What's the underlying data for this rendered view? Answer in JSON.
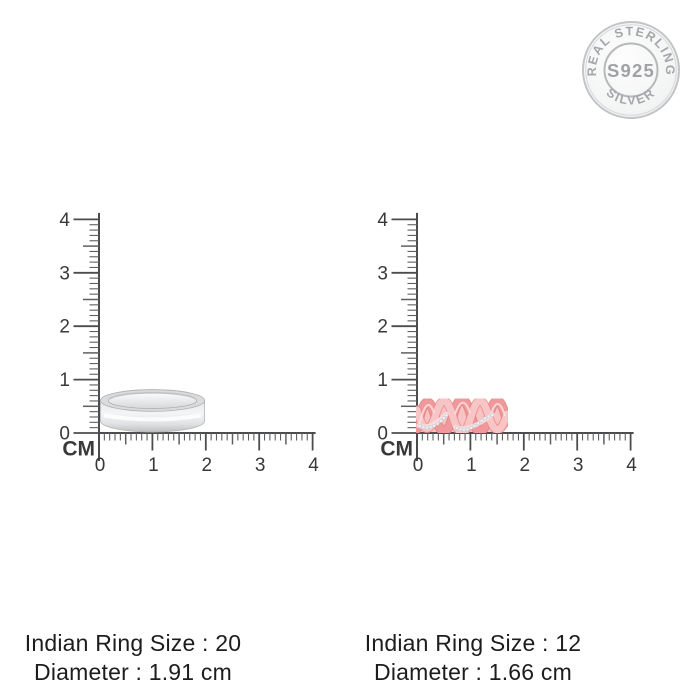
{
  "seal": {
    "arc_top": "REAL STERLING",
    "center": "S925",
    "arc_bottom": "SILVER"
  },
  "ruler": {
    "unit": "CM",
    "labels": [
      "0",
      "1",
      "2",
      "3",
      "4"
    ]
  },
  "products": [
    {
      "size_text": "Indian Ring Size : 20",
      "diameter_text": "Diameter : 1.91 cm"
    },
    {
      "size_text": "Indian Ring Size : 12",
      "diameter_text": "Diameter : 1.66 cm"
    }
  ],
  "colors": {
    "ruler_line": "#4b4c4e",
    "ruler_minor": "#5e5f61",
    "ruler_number": "#39393b",
    "text": "#1d1d1f",
    "seal_gray": "#a4a7a9",
    "seal_border": "#c2c4c6",
    "silver_light": "#f4f5f6",
    "silver_mid": "#dcdee0",
    "silver_dark": "#b9bbbd",
    "pink_main": "#f0999c",
    "pink_light": "#f8c5c6",
    "pink_dark": "#e2807e",
    "stone": "#eef2f6"
  }
}
